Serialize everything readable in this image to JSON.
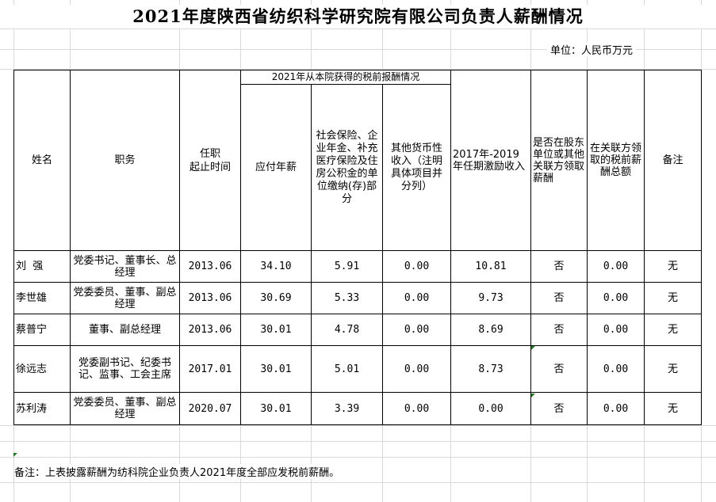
{
  "title": "2021年度陕西省纺织科学研究院有限公司负责人薪酬情况",
  "unit": "单位：人民币万元",
  "headers": {
    "name": "姓名",
    "position": "职务",
    "term": "任职\n起止时间",
    "group": "2021年从本院获得的税前报酬情况",
    "salary": "应付年薪",
    "social": "社会保险、企业年金、补充医疗保险及住房公积金的单位缴纳(存)部分",
    "other": "其他货币性收入（注明具体项目并分列）",
    "incentive": "2017年-2019年任期激励收入",
    "shareholder": "是否在股东单位或其他关联方领取薪酬",
    "related": "在关联方领取的税前薪酬总额",
    "remark": "备注"
  },
  "rows": [
    {
      "name": "刘  强",
      "position": "党委书记、董事长、总经理",
      "term": "2013.06",
      "salary": "34.10",
      "social": "5.91",
      "other": "0.00",
      "incentive": "10.81",
      "shareholder": "否",
      "related": "0.00",
      "remark": "无"
    },
    {
      "name": "李世雄",
      "position": "党委委员、董事、副总经理",
      "term": "2013.06",
      "salary": "30.69",
      "social": "5.33",
      "other": "0.00",
      "incentive": "9.73",
      "shareholder": "否",
      "related": "0.00",
      "remark": "无"
    },
    {
      "name": "蔡普宁",
      "position": "董事、副总经理",
      "term": "2013.06",
      "salary": "30.01",
      "social": "4.78",
      "other": "0.00",
      "incentive": "8.69",
      "shareholder": "否",
      "related": "0.00",
      "remark": "无"
    },
    {
      "name": "徐远志",
      "position": "党委副书记、纪委书记、监事、工会主席",
      "term": "2017.01",
      "salary": "30.01",
      "social": "5.01",
      "other": "0.00",
      "incentive": "8.73",
      "shareholder": "否",
      "related": "0.00",
      "remark": "无"
    },
    {
      "name": "苏利涛",
      "position": "党委委员、董事、副总经理",
      "term": "2020.07",
      "salary": "30.01",
      "social": "3.39",
      "other": "0.00",
      "incentive": "0.00",
      "shareholder": "否",
      "related": "0.00",
      "remark": "无"
    }
  ],
  "note": "备注：上表披露薪酬为纺科院企业负责人2021年度全部应发税前薪酬。"
}
